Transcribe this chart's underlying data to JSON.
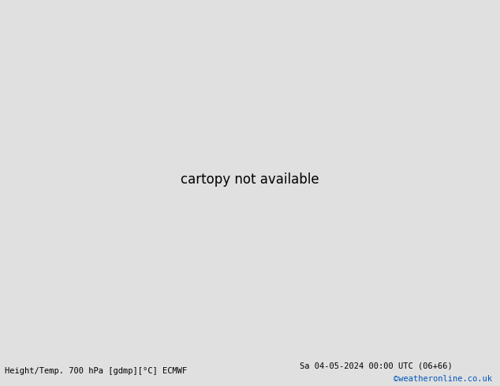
{
  "title_left": "Height/Temp. 700 hPa [gdmp][°C] ECMWF",
  "title_right": "Sa 04-05-2024 00:00 UTC (06+66)",
  "watermark": "©weatheronline.co.uk",
  "background_color": "#e0e0e0",
  "land_color": "#b8e6b8",
  "border_color": "#888888",
  "bottom_text_color": "#000000",
  "watermark_color": "#0055bb",
  "fig_width": 6.34,
  "fig_height": 4.9,
  "dpi": 100,
  "title_fontsize": 7.5,
  "watermark_fontsize": 7.5,
  "geo_color": "#000000",
  "temp_magenta_color": "#dd00aa",
  "temp_red_color": "#dd2200",
  "temp_orange_color": "#ee8800",
  "temp_green_color": "#00bb00",
  "extent_lon_min": -115,
  "extent_lon_max": -20,
  "extent_lat_min": -70,
  "extent_lat_max": 20
}
